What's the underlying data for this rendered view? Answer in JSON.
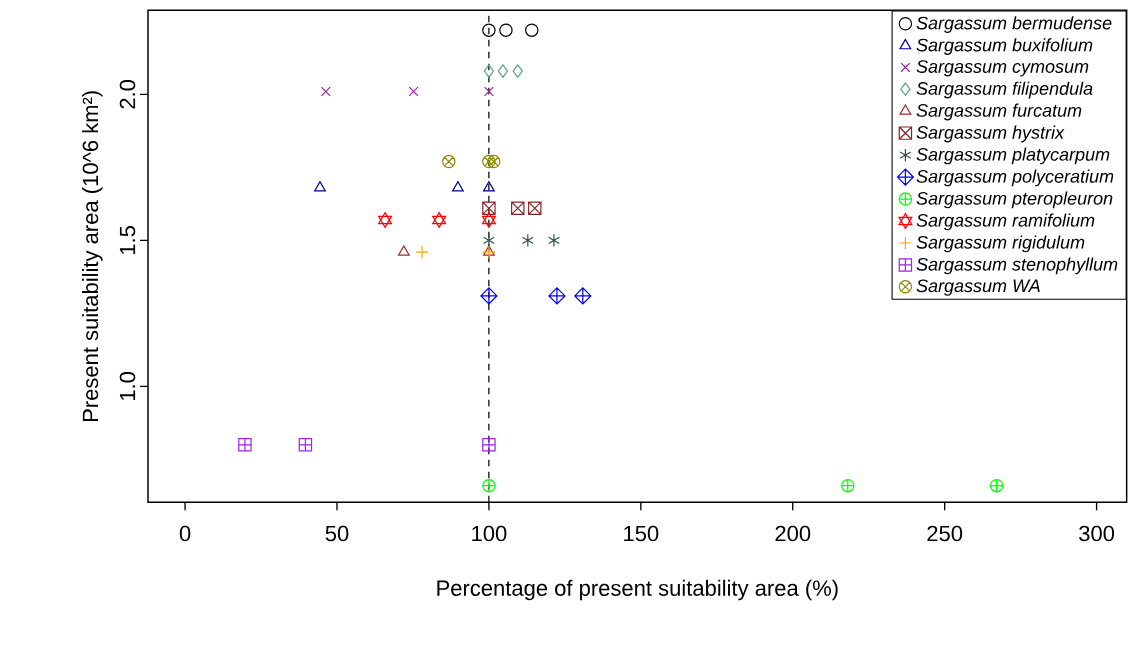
{
  "chart_data": {
    "type": "scatter",
    "xlabel": "Percentage of present suitability area (%)",
    "ylabel": "Present suitability area (10^6 km²)",
    "xlim": [
      -12.2,
      309.9
    ],
    "ylim": [
      0.603,
      2.288
    ],
    "xticks": [
      0,
      50,
      100,
      150,
      200,
      250,
      300
    ],
    "yticks": [
      {
        "value": 1,
        "label": "1.0"
      },
      {
        "value": 1.5,
        "label": "1.5"
      },
      {
        "value": 2,
        "label": "2.0"
      }
    ],
    "grid": false,
    "legend": "top right",
    "ref_lines": [
      {
        "axis": "x",
        "value": 100,
        "color": "#000000",
        "line_style": "dashed"
      }
    ],
    "series": [
      {
        "name": "Sargassum bermudense",
        "color": "#000000",
        "marker": "circle",
        "x": [
          100,
          105.6,
          114.1
        ],
        "values": [
          2.22,
          2.22,
          2.22
        ]
      },
      {
        "name": "Sargassum buxifolium",
        "color": "#00008b",
        "marker": "triangle",
        "x": [
          44.4,
          89.8,
          100
        ],
        "values": [
          1.68,
          1.68,
          1.68
        ]
      },
      {
        "name": "Sargassum cymosum",
        "color": "#a020a0",
        "marker": "cross",
        "x": [
          46.3,
          75.2,
          100
        ],
        "values": [
          2.01,
          2.01,
          2.01
        ]
      },
      {
        "name": "Sargassum filipendula",
        "color": "#5f9e8a",
        "marker": "diamond",
        "x": [
          100,
          104.6,
          109.5
        ],
        "values": [
          2.08,
          2.08,
          2.08
        ]
      },
      {
        "name": "Sargassum furcatum",
        "color": "#a52a2a",
        "marker": "triangle-down",
        "x": [
          72.0,
          100
        ],
        "values": [
          1.46,
          1.46
        ]
      },
      {
        "name": "Sargassum hystrix",
        "color": "#8b2323",
        "marker": "cross",
        "x": [
          100,
          109.5,
          115.1
        ],
        "values": [
          1.61,
          1.61,
          1.61
        ]
      },
      {
        "name": "Sargassum platycarpum",
        "color": "#2f4f4f",
        "marker": "cross",
        "x": [
          100,
          112.8,
          121.4
        ],
        "values": [
          1.5,
          1.5,
          1.5
        ]
      },
      {
        "name": "Sargassum polyceratium",
        "color": "#0000ff",
        "marker": "cross",
        "x": [
          100,
          122.4,
          130.9
        ],
        "values": [
          1.31,
          1.31,
          1.31
        ]
      },
      {
        "name": "Sargassum pteropleuron",
        "color": "#00ff00",
        "marker": "cross",
        "x": [
          100,
          218.1,
          267.1
        ],
        "values": [
          0.66,
          0.66,
          0.66
        ]
      },
      {
        "name": "Sargassum ramifolium",
        "color": "#ff0000",
        "marker": "cross",
        "x": [
          65.8,
          83.6,
          100
        ],
        "values": [
          1.57,
          1.57,
          1.57
        ]
      },
      {
        "name": "Sargassum rigidulum",
        "color": "#ffa500",
        "marker": "plus",
        "x": [
          78.0,
          100
        ],
        "values": [
          1.46,
          1.46
        ]
      },
      {
        "name": "Sargassum stenophyllum",
        "color": "#a020f0",
        "marker": "cross",
        "x": [
          19.7,
          39.6,
          100
        ],
        "values": [
          0.8,
          0.8,
          0.8
        ]
      },
      {
        "name": "Sargassum WA",
        "color": "#8b8b00",
        "marker": "cross",
        "x": [
          86.8,
          100,
          101.6
        ],
        "values": [
          1.77,
          1.77,
          1.77
        ]
      }
    ]
  }
}
